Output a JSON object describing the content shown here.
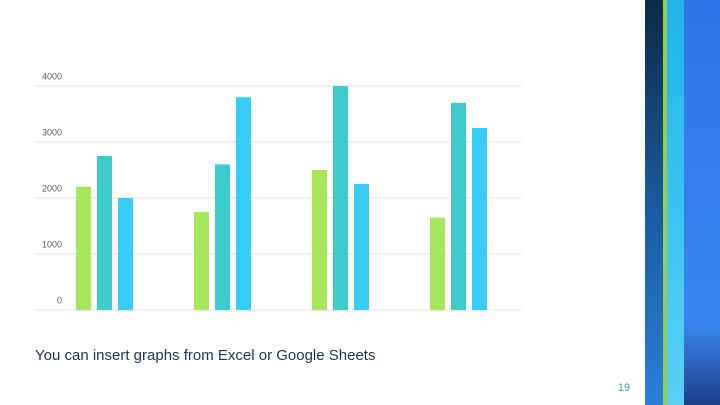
{
  "chart_data": {
    "type": "bar",
    "categories": [
      null,
      null,
      null,
      null
    ],
    "series": [
      {
        "color": "#a6e65a",
        "values": [
          2200,
          1750,
          2500,
          1650
        ]
      },
      {
        "color": "#3ecbcb",
        "values": [
          2750,
          2600,
          4000,
          3700
        ]
      },
      {
        "color": "#37cdf6",
        "values": [
          2000,
          3800,
          2250,
          3250
        ]
      }
    ],
    "ylim": [
      0,
      4000
    ],
    "yticks": [
      0,
      1000,
      2000,
      3000,
      4000
    ],
    "grid": true
  },
  "caption": "You can insert graphs from Excel or Google Sheets",
  "page_number": 19
}
